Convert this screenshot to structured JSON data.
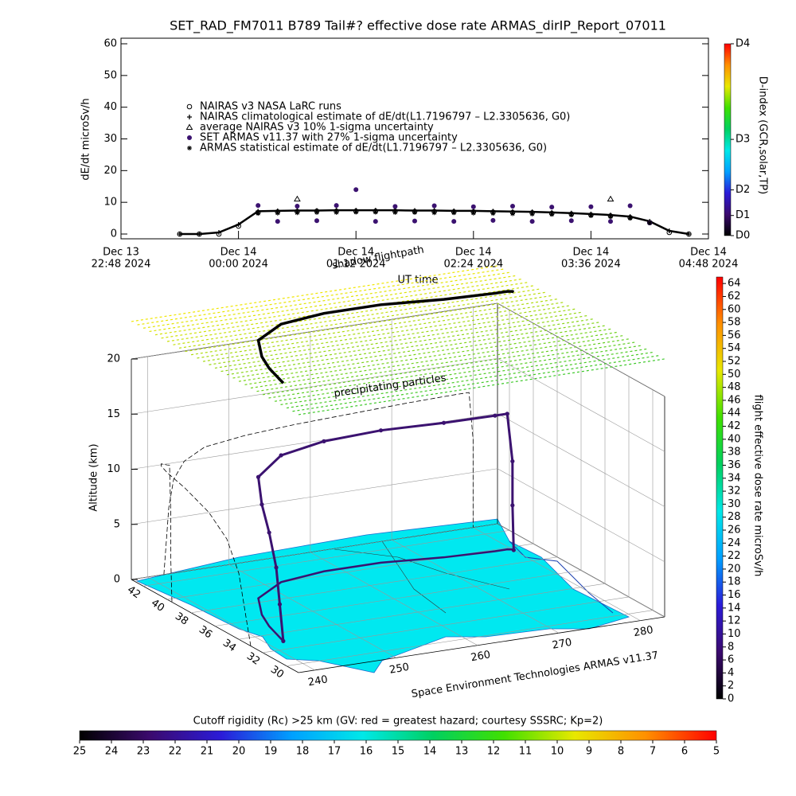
{
  "title": "SET_RAD_FM7011  B789 Tail#? effective dose rate ARMAS_dirIP_Report_07011",
  "chart_data": [
    {
      "type": "scatter",
      "ylabel": "dE/dt microSv/h",
      "xlabel": "UT time",
      "xlim": [
        "2024-12-13T22:48",
        "2024-12-14T04:48"
      ],
      "xticks": [
        {
          "value": "2024-12-13T22:48",
          "label": [
            "Dec 13",
            "22:48 2024"
          ]
        },
        {
          "value": "2024-12-14T00:00",
          "label": [
            "Dec 14",
            "00:00 2024"
          ]
        },
        {
          "value": "2024-12-14T01:12",
          "label": [
            "Dec 14",
            "01:12 2024"
          ]
        },
        {
          "value": "2024-12-14T02:24",
          "label": [
            "Dec 14",
            "02:24 2024"
          ]
        },
        {
          "value": "2024-12-14T03:36",
          "label": [
            "Dec 14",
            "03:36 2024"
          ]
        },
        {
          "value": "2024-12-14T04:48",
          "label": [
            "Dec 14",
            "04:48 2024"
          ]
        }
      ],
      "ylim": [
        0,
        60
      ],
      "yticks": [
        0,
        10,
        20,
        30,
        40,
        50,
        60
      ],
      "x": [
        "2024-12-13T23:24",
        "2024-12-13T23:36",
        "2024-12-13T23:48",
        "2024-12-14T00:00",
        "2024-12-14T00:12",
        "2024-12-14T00:24",
        "2024-12-14T00:36",
        "2024-12-14T00:48",
        "2024-12-14T01:00",
        "2024-12-14T01:12",
        "2024-12-14T01:24",
        "2024-12-14T01:36",
        "2024-12-14T01:48",
        "2024-12-14T02:00",
        "2024-12-14T02:12",
        "2024-12-14T02:24",
        "2024-12-14T02:36",
        "2024-12-14T02:48",
        "2024-12-14T03:00",
        "2024-12-14T03:12",
        "2024-12-14T03:24",
        "2024-12-14T03:36",
        "2024-12-14T03:48",
        "2024-12-14T04:00",
        "2024-12-14T04:12",
        "2024-12-14T04:24",
        "2024-12-14T04:36"
      ],
      "series": [
        {
          "name": "NAIRAS v3 NASA LaRC runs",
          "color": "#000000",
          "marker": "circle",
          "values": [
            0,
            0,
            0,
            2.5,
            6.8,
            7.0,
            7.1,
            7.2,
            7.2,
            7.2,
            7.2,
            7.2,
            7.1,
            7.1,
            7.0,
            7.0,
            6.9,
            6.8,
            6.7,
            6.5,
            6.3,
            6.0,
            5.7,
            5.2,
            3.6,
            0.5,
            0
          ]
        },
        {
          "name": "NAIRAS climatological estimate of dE/dt(L1.7196797 – L2.3305636, G0)",
          "color": "#000000",
          "marker": "plus",
          "line": true,
          "values": [
            0,
            0,
            0.5,
            3,
            7.2,
            7.3,
            7.4,
            7.4,
            7.5,
            7.5,
            7.5,
            7.5,
            7.4,
            7.4,
            7.3,
            7.3,
            7.2,
            7.1,
            7.0,
            6.8,
            6.6,
            6.3,
            6.0,
            5.5,
            4.0,
            1.0,
            0
          ]
        },
        {
          "name": "average NAIRAS v3 10% 1-sigma uncertainty",
          "color": "#000000",
          "marker": "triangle",
          "values": [
            null,
            null,
            null,
            null,
            null,
            null,
            11,
            null,
            null,
            null,
            null,
            null,
            null,
            null,
            null,
            null,
            null,
            null,
            null,
            null,
            null,
            null,
            11,
            null,
            null,
            null,
            null
          ]
        },
        {
          "name": "SET ARMAS v11.37 with 27% 1-sigma uncertainty",
          "color": "#3b1270",
          "marker": "dot",
          "values": [
            null,
            null,
            null,
            null,
            9,
            4,
            8.8,
            4.2,
            9,
            14,
            4,
            8.7,
            4.1,
            8.9,
            4,
            8.6,
            4.3,
            8.8,
            4,
            8.5,
            4.2,
            8.6,
            4,
            8.9,
            3.5,
            null,
            null
          ]
        },
        {
          "name": "ARMAS statistical estimate of dE/dt(L1.7196797 – L2.3305636, G0)",
          "color": "#000000",
          "marker": "star",
          "values": [
            null,
            null,
            null,
            null,
            6.5,
            6.6,
            6.7,
            6.8,
            6.8,
            6.9,
            6.9,
            6.8,
            6.8,
            6.7,
            6.7,
            6.6,
            6.5,
            6.4,
            6.3,
            6.2,
            6.0,
            5.8,
            5.5,
            5.0,
            3.5,
            null,
            null
          ]
        }
      ],
      "colorbar": {
        "label": "D-index (GCR,solar,TP)",
        "lim": [
          0,
          60
        ],
        "colors": [
          "#000000",
          "#3b0a6e",
          "#2b1bd8",
          "#00a0ff",
          "#00e8e8",
          "#00d060",
          "#40e000",
          "#e8e800",
          "#ff9000",
          "#ff0000"
        ],
        "ticks": [
          {
            "value": 0,
            "label": "D0"
          },
          {
            "value": 6.3,
            "label": "D1"
          },
          {
            "value": 14.3,
            "label": "D2"
          },
          {
            "value": 30.1,
            "label": "D3"
          },
          {
            "value": 60,
            "label": "D4"
          }
        ]
      }
    },
    {
      "type": "scatter3d",
      "zlabel": "Altitude (km)",
      "zlim": [
        0,
        20
      ],
      "zticks": [
        0,
        5,
        10,
        15,
        20
      ],
      "lonlim": [
        238,
        283
      ],
      "lonticks": [
        240,
        250,
        260,
        270,
        280
      ],
      "latlim": [
        29,
        43
      ],
      "latticks": [
        42,
        40,
        38,
        36,
        34,
        32,
        30
      ],
      "annotations": [
        "shadow flightpath",
        "precipitating particles"
      ],
      "credit": "Space Environment Technologies ARMAS v11.37",
      "path": {
        "color": "#3b1270",
        "lon": [
          242.0,
          242.3,
          242.6,
          243.2,
          244.5,
          247,
          252,
          258,
          265,
          272,
          278,
          279.5,
          280,
          280,
          280
        ],
        "lat": [
          33.0,
          33.5,
          34.0,
          35.0,
          36.5,
          38.5,
          40,
          40.5,
          40.5,
          40,
          39.8,
          39.8,
          39.7,
          39.7,
          39.6
        ],
        "alt": [
          0,
          3,
          6,
          8.5,
          10,
          11,
          11.5,
          11.8,
          12.0,
          12.2,
          12.3,
          12.3,
          8,
          4,
          0
        ]
      },
      "colorbar": {
        "label": "flight effective dose rate microSv/h",
        "lim": [
          0,
          65
        ],
        "colors": [
          "#000000",
          "#3b0a6e",
          "#2b1bd8",
          "#00a0ff",
          "#00e8e8",
          "#00d060",
          "#40e000",
          "#e8e800",
          "#ff9000",
          "#ff0000"
        ],
        "ticks": [
          0,
          2,
          4,
          6,
          8,
          10,
          12,
          14,
          16,
          18,
          20,
          22,
          24,
          26,
          28,
          30,
          32,
          34,
          36,
          38,
          40,
          42,
          44,
          46,
          48,
          50,
          52,
          54,
          56,
          58,
          60,
          62,
          64
        ]
      }
    },
    {
      "type": "colorbar",
      "label": "Cutoff rigidity (Rc) >25 km (GV: red = greatest hazard; courtesy SSSRC; Kp=2)",
      "lim": [
        25,
        5
      ],
      "colors": [
        "#000000",
        "#3b0a6e",
        "#2b1bd8",
        "#00a0ff",
        "#00e8e8",
        "#00d060",
        "#40e000",
        "#e8e800",
        "#ff9000",
        "#ff0000"
      ],
      "ticks": [
        25,
        24,
        23,
        22,
        21,
        20,
        19,
        18,
        17,
        16,
        15,
        14,
        13,
        12,
        11,
        10,
        9,
        8,
        7,
        6,
        5
      ]
    }
  ]
}
